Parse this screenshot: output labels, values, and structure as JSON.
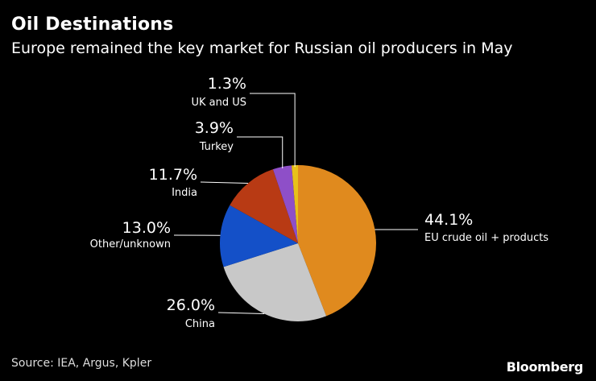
{
  "header": {
    "title": "Oil Destinations",
    "subtitle": "Europe remained the key market for Russian oil producers in May"
  },
  "footer": {
    "source": "Source: IEA, Argus, Kpler",
    "brand": "Bloomberg"
  },
  "chart_data": {
    "type": "pie",
    "title": "Oil Destinations",
    "subtitle": "Europe remained the key market for Russian oil producers in May",
    "slices": [
      {
        "label": "EU crude oil + products",
        "value": 44.1,
        "value_label": "44.1%",
        "color": "#e08a1e"
      },
      {
        "label": "China",
        "value": 26.0,
        "value_label": "26.0%",
        "color": "#c8c8c8"
      },
      {
        "label": "Other/unknown",
        "value": 13.0,
        "value_label": "13.0%",
        "color": "#1450c8"
      },
      {
        "label": "India",
        "value": 11.7,
        "value_label": "11.7%",
        "color": "#b83a14"
      },
      {
        "label": "Turkey",
        "value": 3.9,
        "value_label": "3.9%",
        "color": "#8e4fc8"
      },
      {
        "label": "UK and US",
        "value": 1.3,
        "value_label": "1.3%",
        "color": "#e8c11a"
      }
    ],
    "legend": "none"
  }
}
